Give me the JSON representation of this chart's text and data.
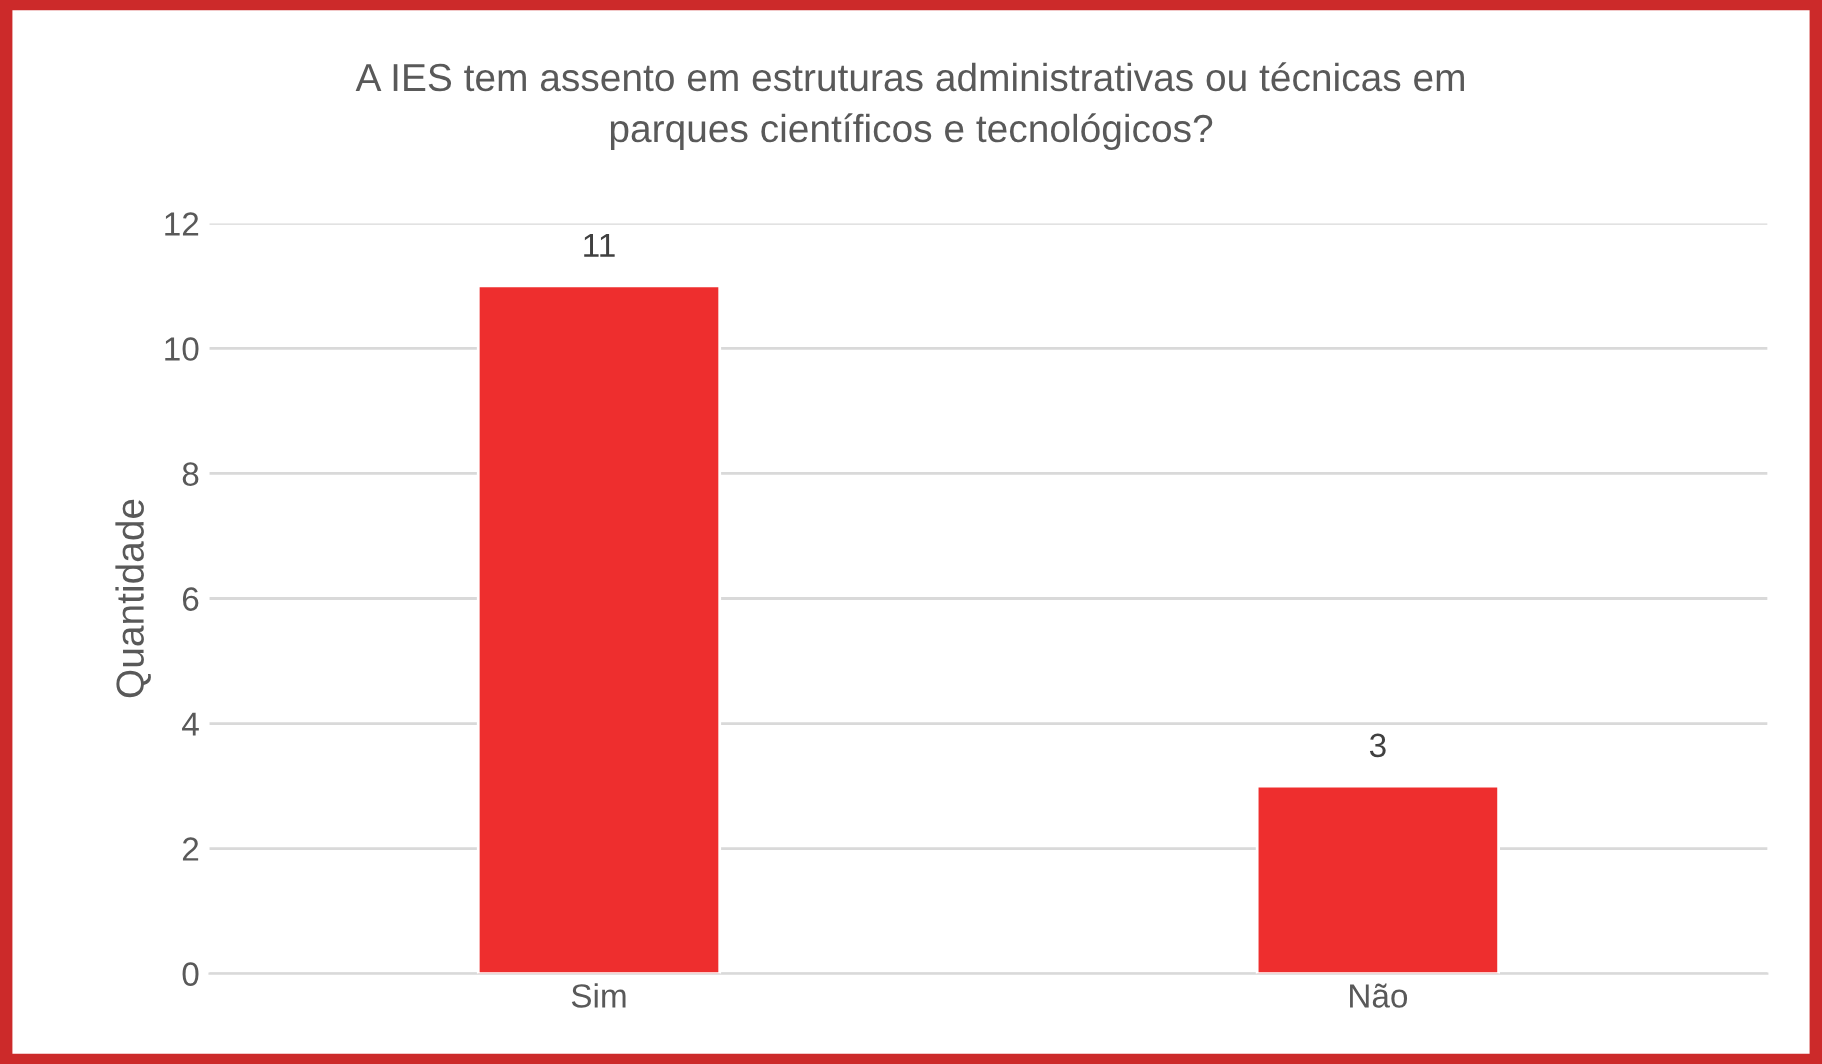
{
  "chart_data": {
    "type": "bar",
    "title": "A IES tem assento em estruturas administrativas ou técnicas em\nparques científicos e tecnológicos?",
    "ylabel": "Quantidade",
    "categories": [
      "Sim",
      "Não"
    ],
    "values": [
      11,
      3
    ],
    "color": "#ee2e2e",
    "ylim": [
      0,
      12
    ],
    "yticks": [
      0,
      2,
      4,
      6,
      8,
      10,
      12
    ],
    "grid": "y",
    "data_labels": true
  }
}
